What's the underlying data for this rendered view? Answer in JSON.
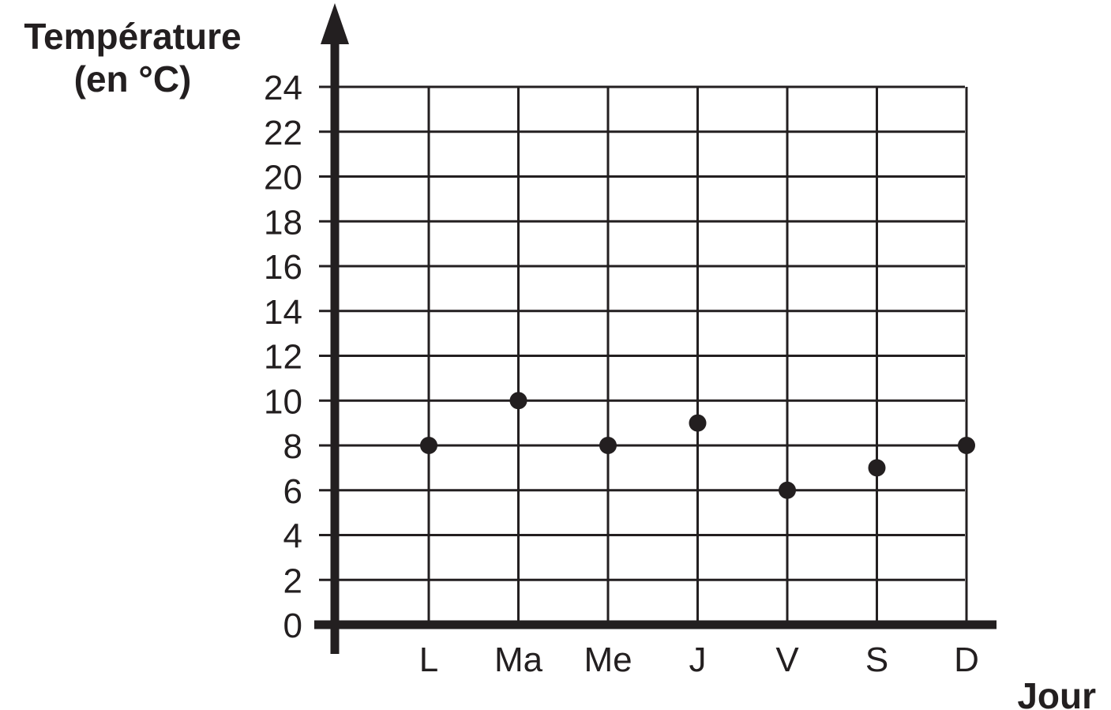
{
  "chart_data": {
    "type": "scatter",
    "categories": [
      "L",
      "Ma",
      "Me",
      "J",
      "V",
      "S",
      "D"
    ],
    "values": [
      8,
      10,
      8,
      9,
      6,
      7,
      8
    ],
    "title": "",
    "ylabel_lines": [
      "Température",
      "(en °C)"
    ],
    "xlabel": "Jour",
    "ylim": [
      0,
      24
    ],
    "ytick_step": 2,
    "yticks": [
      "0",
      "2",
      "4",
      "6",
      "8",
      "10",
      "12",
      "14",
      "16",
      "18",
      "20",
      "22",
      "24"
    ],
    "grid": true,
    "legend": "none",
    "color": "#231f20"
  }
}
